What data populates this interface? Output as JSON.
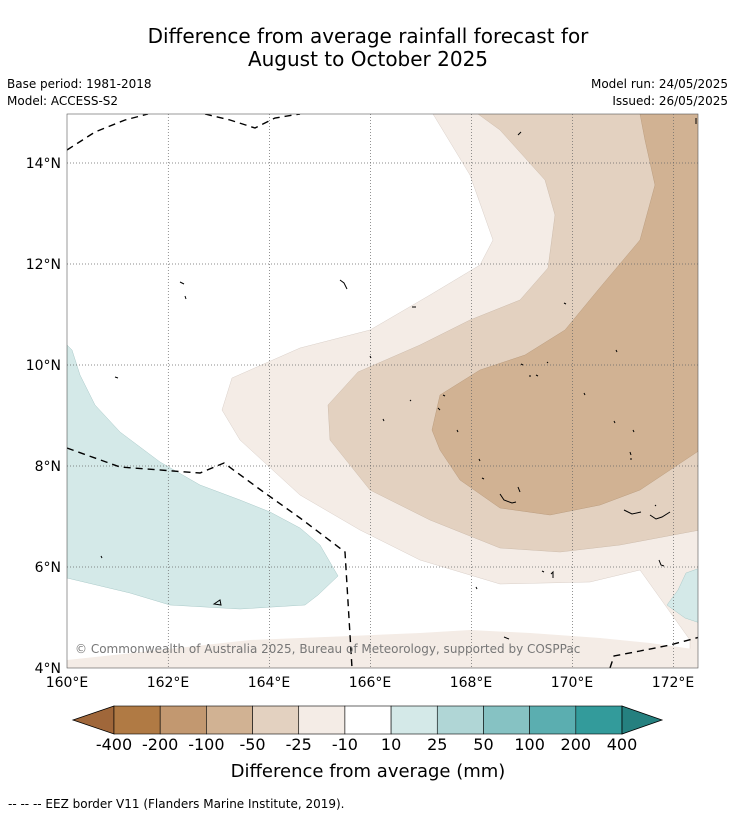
{
  "title": {
    "line1": "Difference from average rainfall forecast for",
    "line2": "August to October 2025"
  },
  "meta": {
    "base_period": "Base period: 1981-2018",
    "model": "Model: ACCESS-S2",
    "model_run": "Model run: 24/05/2025",
    "issued": "Issued: 26/05/2025"
  },
  "map": {
    "lon_min": 160.0,
    "lon_max": 172.5,
    "lat_min": 4.0,
    "lat_max": 15.0,
    "x_ticks": [
      "160°E",
      "162°E",
      "164°E",
      "166°E",
      "168°E",
      "170°E",
      "172°E"
    ],
    "y_ticks": [
      "4°N",
      "6°N",
      "8°N",
      "10°N",
      "12°N",
      "14°N"
    ],
    "grid": true,
    "copyright": "© Commonwealth of Australia 2025, Bureau of Meteorology, supported by COSPPac"
  },
  "colorbar": {
    "ticks": [
      "-400",
      "-200",
      "-100",
      "-50",
      "-25",
      "-10",
      "10",
      "25",
      "50",
      "100",
      "200",
      "400"
    ],
    "colors": [
      "#a0673a",
      "#b07a44",
      "#c29870",
      "#d1b293",
      "#e3d1c0",
      "#f4ece6",
      "#ffffff",
      "#d4e9e8",
      "#b0d6d6",
      "#86c2c3",
      "#5baeb0",
      "#339b9b",
      "#25807f"
    ],
    "label": "Difference from average (mm)"
  },
  "footnote": "--  --  -- EEZ border V11 (Flanders Marine Institute, 2019)."
}
